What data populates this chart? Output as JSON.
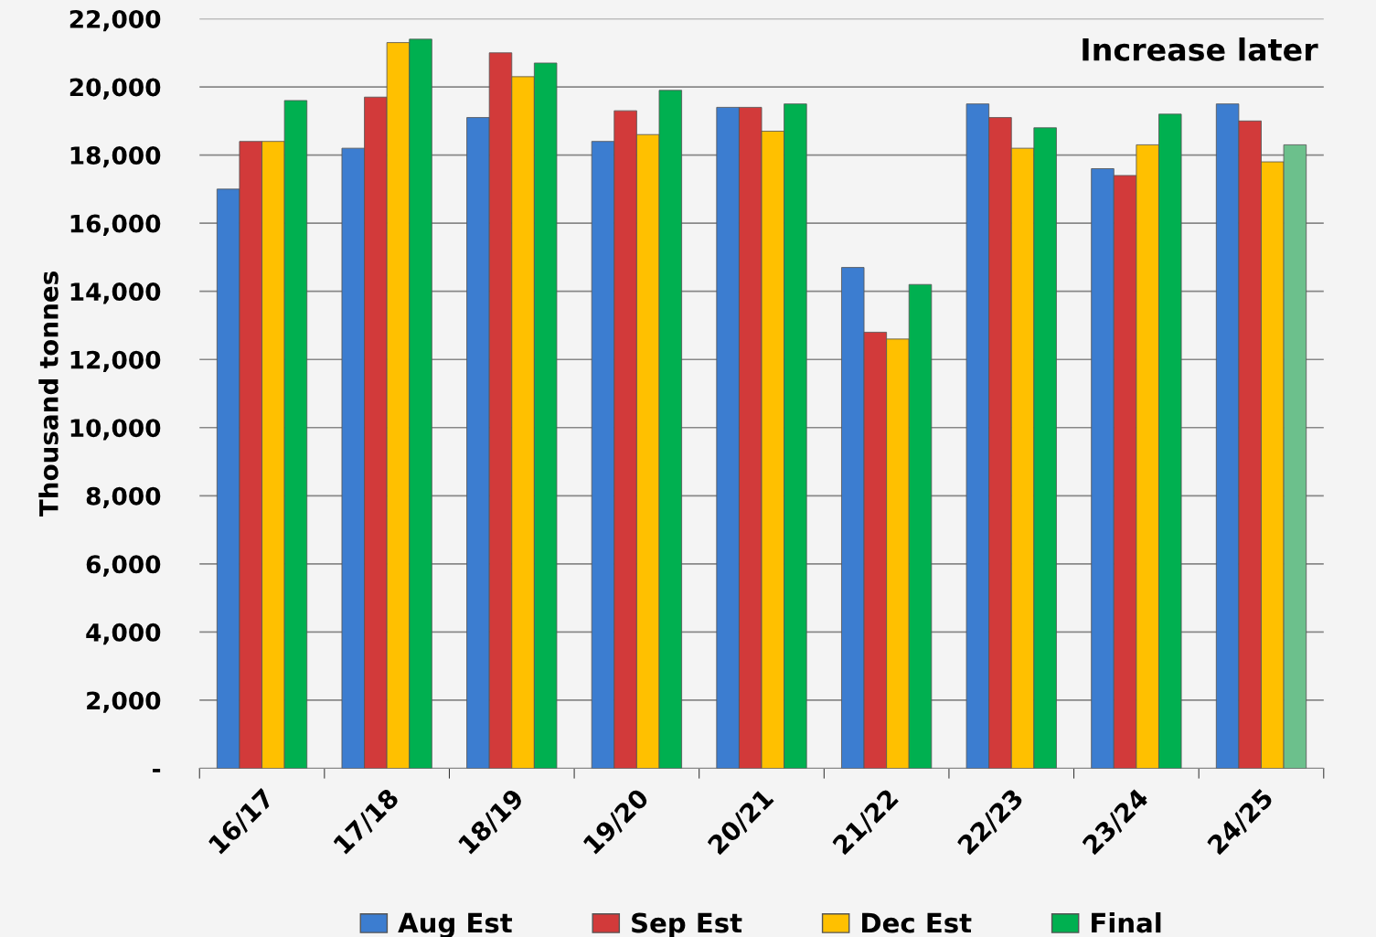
{
  "chart_data": {
    "type": "bar",
    "ylabel": "Thousand tonnes",
    "categories": [
      "16/17",
      "17/18",
      "18/19",
      "19/20",
      "20/21",
      "21/22",
      "22/23",
      "23/24",
      "24/25"
    ],
    "series": [
      {
        "name": "Aug Est",
        "color": "#3c7dd0",
        "values": [
          17000,
          18200,
          19100,
          18400,
          19400,
          14700,
          19500,
          17600,
          19500
        ]
      },
      {
        "name": "Sep Est",
        "color": "#d23a3a",
        "values": [
          18400,
          19700,
          21000,
          19300,
          19400,
          12800,
          19100,
          17400,
          19000
        ]
      },
      {
        "name": "Dec Est",
        "color": "#ffc000",
        "values": [
          18400,
          21300,
          20300,
          18600,
          18700,
          12600,
          18200,
          18300,
          17800
        ]
      },
      {
        "name": "Final",
        "color": "#00b050",
        "colors": [
          "#00b050",
          "#00b050",
          "#00b050",
          "#00b050",
          "#00b050",
          "#00b050",
          "#00b050",
          "#00b050",
          "#6cc08c"
        ],
        "values": [
          19600,
          21400,
          20700,
          19900,
          19500,
          14200,
          18800,
          19200,
          18300
        ]
      }
    ],
    "ylim": [
      0,
      22000
    ],
    "yticks": [
      {
        "value": 0,
        "label": "-"
      },
      {
        "value": 2000,
        "label": "2,000"
      },
      {
        "value": 4000,
        "label": "4,000"
      },
      {
        "value": 6000,
        "label": "6,000"
      },
      {
        "value": 8000,
        "label": "8,000"
      },
      {
        "value": 10000,
        "label": "10,000"
      },
      {
        "value": 12000,
        "label": "12,000"
      },
      {
        "value": 14000,
        "label": "14,000"
      },
      {
        "value": 16000,
        "label": "16,000"
      },
      {
        "value": 18000,
        "label": "18,000"
      },
      {
        "value": 20000,
        "label": "20,000"
      },
      {
        "value": 22000,
        "label": "22,000"
      }
    ],
    "grid": "y",
    "legend": "bottom",
    "annotations": [
      "Increase later"
    ]
  }
}
